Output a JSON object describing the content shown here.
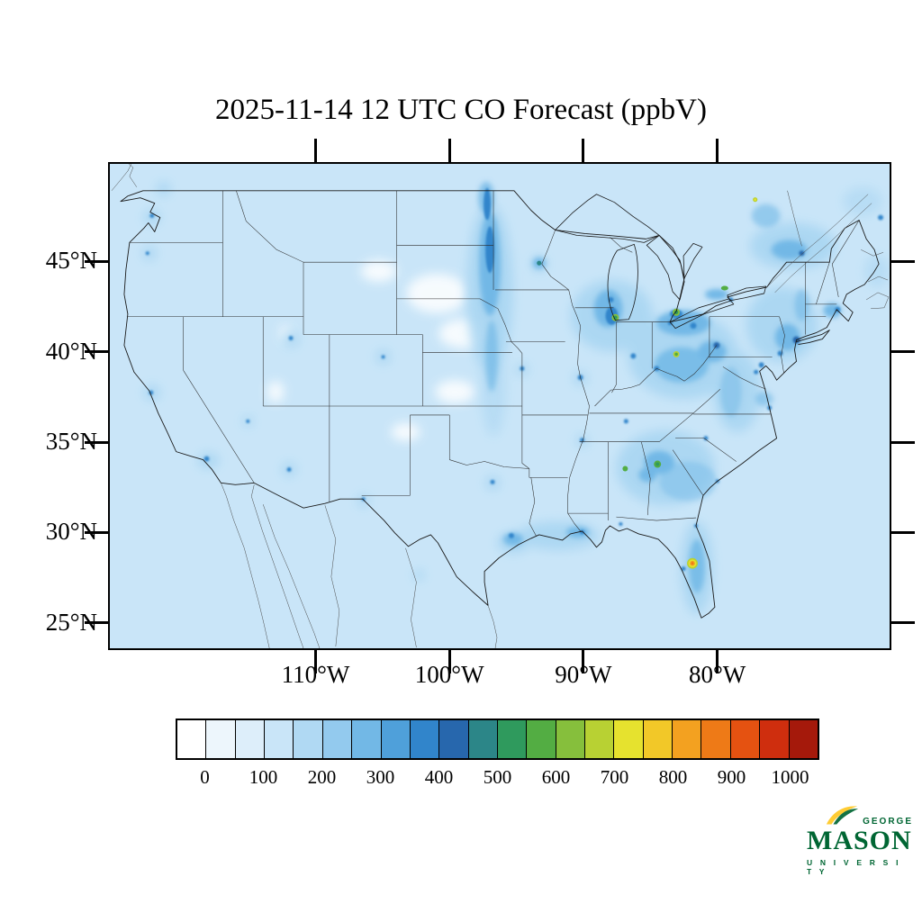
{
  "title": "2025-11-14 12 UTC CO Forecast (ppbV)",
  "axes": {
    "y_labels": [
      "45°N",
      "40°N",
      "35°N",
      "30°N",
      "25°N"
    ],
    "x_labels": [
      "110°W",
      "100°W",
      "90°W",
      "80°W"
    ]
  },
  "colorbar": {
    "tick_labels": [
      "0",
      "100",
      "200",
      "300",
      "400",
      "500",
      "600",
      "700",
      "800",
      "900",
      "1000"
    ],
    "colors": [
      "#ffffff",
      "#edf6fc",
      "#ddeefa",
      "#c9e5f8",
      "#b0d9f3",
      "#93caee",
      "#72b8e6",
      "#4fa0da",
      "#3185cb",
      "#2767ad",
      "#2c8688",
      "#2f9a5d",
      "#53ad43",
      "#86bf3c",
      "#b8d133",
      "#e6e22e",
      "#f2c828",
      "#f3a120",
      "#ee7a17",
      "#e55211",
      "#cf2e0e",
      "#a5190b"
    ]
  },
  "logo": {
    "george": "GEORGE",
    "mason": "MASON",
    "university": "U N I V E R S I T Y",
    "green": "#006633",
    "gold": "#FFCC33"
  },
  "chart_data": {
    "type": "heatmap",
    "title": "2025-11-14 12 UTC CO Forecast (ppbV)",
    "units": "ppbV",
    "region": "Continental United States",
    "lat_ticks": [
      "45°N",
      "40°N",
      "35°N",
      "30°N",
      "25°N"
    ],
    "lon_ticks": [
      "110°W",
      "100°W",
      "90°W",
      "80°W"
    ],
    "colorbar_ticks": [
      0,
      100,
      200,
      300,
      400,
      500,
      600,
      700,
      800,
      900,
      1000
    ],
    "colorbar_bins": 22,
    "field_description": "Background CO 50-150 ppbV across domain; elevated plumes 200-400 ppbV over upper Midwest, Great Lakes, Ohio Valley, Northeast corridor and Southeast; green hotspots 400-550 ppbV at Chicago, Detroit, Toronto, Columbus, Atlanta, Birmingham; peak orange spot ~800 ppbV in central Florida; near-zero white patches over the central Great Plains"
  }
}
